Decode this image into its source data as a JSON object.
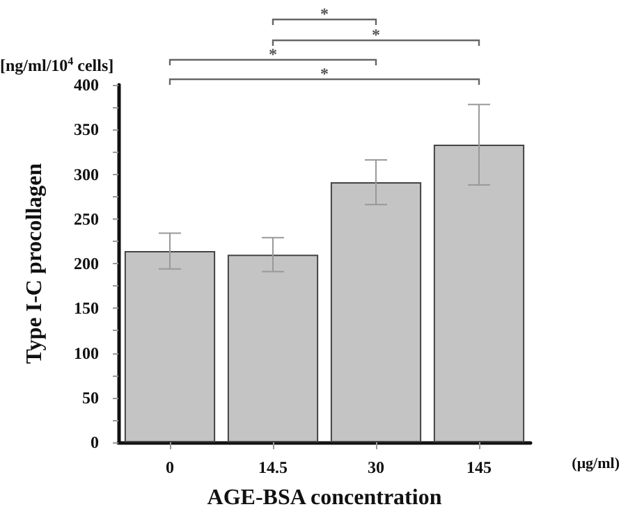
{
  "chart_data": {
    "type": "bar",
    "xlabel": "AGE-BSA concentration",
    "ylabel": "Type I-C procollagen",
    "categories": [
      "0",
      "14.5",
      "30",
      "145"
    ],
    "values": [
      214,
      210,
      291,
      333
    ],
    "errors": [
      20,
      19,
      25,
      45
    ],
    "color": "#c4c4c4",
    "ylim": [
      0,
      400
    ],
    "yticks": [
      0,
      {
        "value": 25,
        "label": null
      },
      50,
      {
        "value": 75,
        "label": null
      },
      100,
      {
        "value": 125,
        "label": null
      },
      150,
      {
        "value": 175,
        "label": null
      },
      200,
      {
        "value": 225,
        "label": null
      },
      250,
      {
        "value": 275,
        "label": null
      },
      300,
      {
        "value": 325,
        "label": null
      },
      350,
      {
        "value": 375,
        "label": null
      },
      400
    ],
    "grid": false,
    "annotations": [
      "[ng/ml/10$^{4}$ cells]",
      "(μg/ml)",
      "*",
      "*",
      "*",
      "*"
    ]
  }
}
